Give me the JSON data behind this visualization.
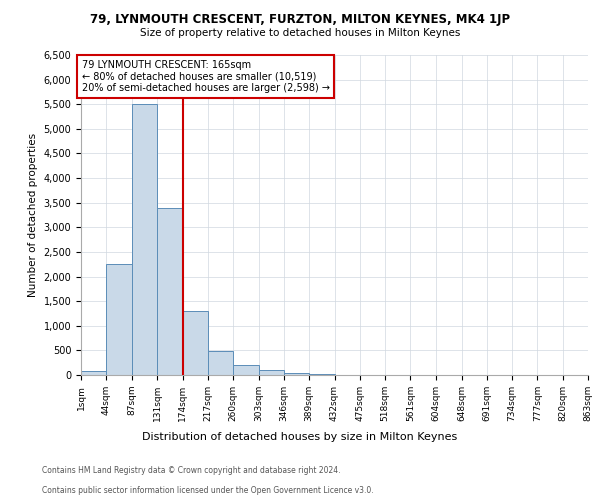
{
  "title_line1": "79, LYNMOUTH CRESCENT, FURZTON, MILTON KEYNES, MK4 1JP",
  "title_line2": "Size of property relative to detached houses in Milton Keynes",
  "xlabel": "Distribution of detached houses by size in Milton Keynes",
  "ylabel": "Number of detached properties",
  "bin_edges": [
    1,
    44,
    87,
    131,
    174,
    217,
    260,
    303,
    346,
    389,
    432,
    475,
    518,
    561,
    604,
    648,
    691,
    734,
    777,
    820,
    863
  ],
  "bar_heights": [
    75,
    2250,
    5500,
    3400,
    1300,
    480,
    200,
    100,
    50,
    30,
    10,
    5,
    3,
    2,
    1,
    1,
    0,
    0,
    0,
    0
  ],
  "bar_color": "#c9d9e8",
  "bar_edge_color": "#5b8db8",
  "property_line_x": 174,
  "property_line_color": "#cc0000",
  "annotation_title": "79 LYNMOUTH CRESCENT: 165sqm",
  "annotation_line1": "← 80% of detached houses are smaller (10,519)",
  "annotation_line2": "20% of semi-detached houses are larger (2,598) →",
  "annotation_box_color": "#cc0000",
  "ylim": [
    0,
    6500
  ],
  "yticks": [
    0,
    500,
    1000,
    1500,
    2000,
    2500,
    3000,
    3500,
    4000,
    4500,
    5000,
    5500,
    6000,
    6500
  ],
  "footnote_line1": "Contains HM Land Registry data © Crown copyright and database right 2024.",
  "footnote_line2": "Contains public sector information licensed under the Open Government Licence v3.0.",
  "background_color": "#ffffff",
  "grid_color": "#d0d8e0"
}
